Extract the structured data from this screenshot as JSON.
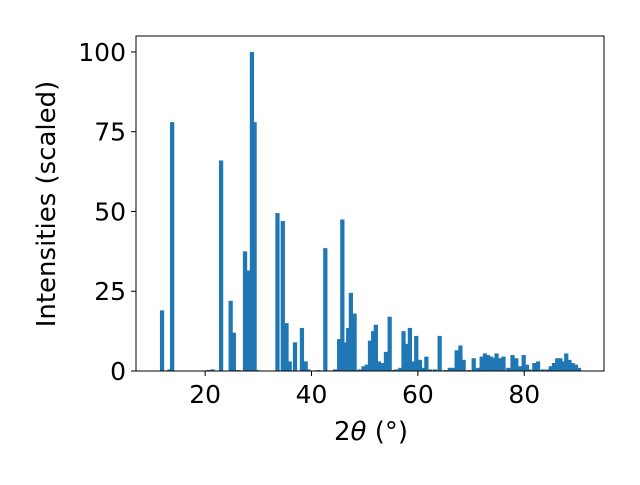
{
  "chart_data": {
    "type": "bar",
    "title": "",
    "xlabel_parts": {
      "main": "2",
      "theta": "θ",
      "unit": " (°)"
    },
    "ylabel": "Intensities (scaled)",
    "xlim": [
      7,
      95
    ],
    "ylim": [
      0,
      105
    ],
    "xticks": [
      20,
      40,
      60,
      80
    ],
    "yticks": [
      0,
      25,
      50,
      75,
      100
    ],
    "bar_color": "#1f77b4",
    "bar_width": 0.8,
    "grid": false,
    "legend": "none",
    "x": [
      11.9,
      13.3,
      13.8,
      20.6,
      21.4,
      23.0,
      24.8,
      25.4,
      26.3,
      27.5,
      28.1,
      28.8,
      29.3,
      29.7,
      33.6,
      34.6,
      35.3,
      35.9,
      36.9,
      38.2,
      38.9,
      39.4,
      41.3,
      42.6,
      44.4,
      45.2,
      45.8,
      46.4,
      46.9,
      47.4,
      48.1,
      49.0,
      49.8,
      50.4,
      51.0,
      51.6,
      52.1,
      52.7,
      53.3,
      54.0,
      54.7,
      55.4,
      55.9,
      56.7,
      57.3,
      58.0,
      58.5,
      59.1,
      59.7,
      60.4,
      61.0,
      61.6,
      62.3,
      63.2,
      64.1,
      65.2,
      66.0,
      66.6,
      67.3,
      68.0,
      68.6,
      69.6,
      70.5,
      71.3,
      72.0,
      72.6,
      73.2,
      73.8,
      74.3,
      74.8,
      75.4,
      76.1,
      77.0,
      77.8,
      78.5,
      79.2,
      79.9,
      80.5,
      81.0,
      81.9,
      82.6,
      83.5,
      84.4,
      85.0,
      85.6,
      86.2,
      86.8,
      87.3,
      87.9,
      88.5,
      89.1,
      89.7,
      90.3
    ],
    "values": [
      19,
      0.5,
      78,
      0.3,
      0.5,
      66,
      22,
      12,
      0.3,
      37.5,
      31.5,
      100,
      78,
      0.3,
      49.5,
      47,
      15,
      3,
      9,
      13.5,
      3,
      0.5,
      0.3,
      38.5,
      0.5,
      10,
      47.5,
      9,
      13.5,
      24.5,
      18,
      0.5,
      1.5,
      2,
      9.5,
      12.5,
      14.5,
      3,
      2.5,
      6,
      17,
      0.3,
      0.5,
      1,
      12.5,
      8.5,
      13.5,
      3,
      11,
      3.5,
      1,
      4.5,
      0.5,
      0.5,
      11,
      0.3,
      1,
      1,
      6.5,
      8,
      3.5,
      0.3,
      4,
      1,
      4.5,
      5.5,
      5,
      4.5,
      4,
      5.5,
      4,
      4.5,
      1,
      5,
      4,
      1.5,
      5,
      2,
      0.5,
      2.5,
      3,
      0.5,
      0.5,
      1.5,
      2.5,
      4,
      4,
      3,
      5.5,
      3.5,
      2.5,
      2,
      1
    ]
  }
}
